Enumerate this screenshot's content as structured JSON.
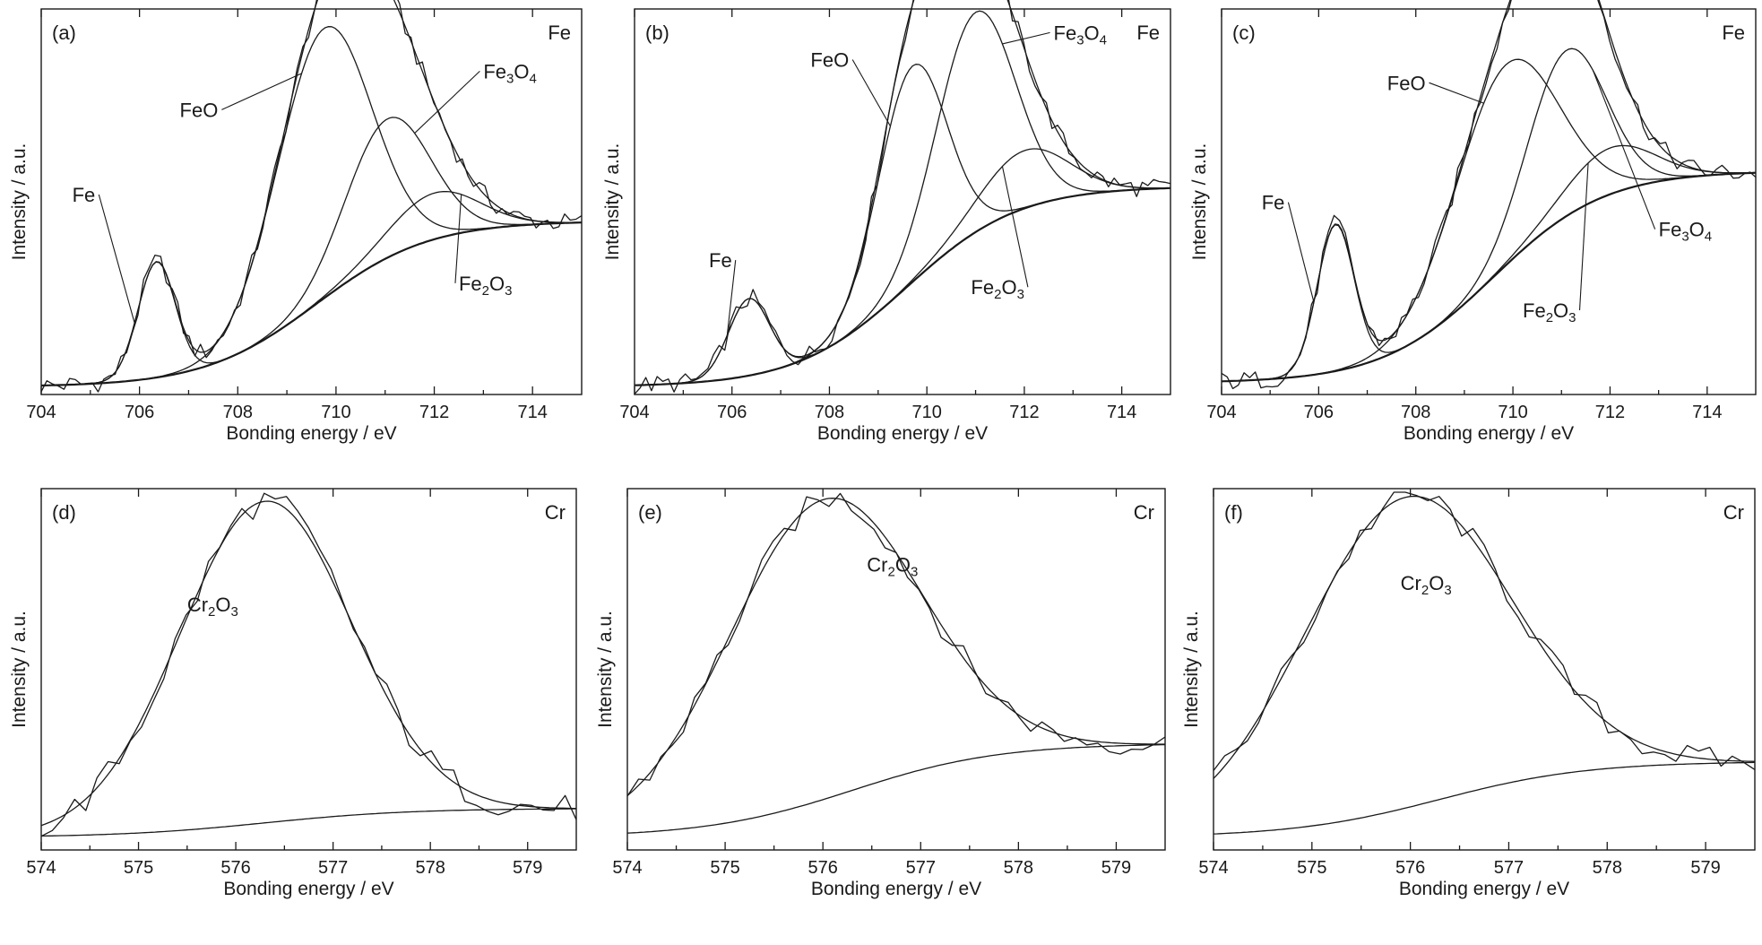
{
  "chart_data": [
    {
      "type": "line",
      "panel": "(a)",
      "element": "Fe",
      "xlabel": "Bonding energy / eV",
      "ylabel": "Intensity / a.u.",
      "xlim": [
        704,
        715
      ],
      "xticks": [
        "704",
        "706",
        "708",
        "710",
        "712",
        "714"
      ],
      "baseline": [
        0.02,
        0.45
      ],
      "peaks": [
        {
          "name": "Fe",
          "center": 706.35,
          "height": 0.3,
          "sigma": 0.38,
          "label_x": 705.1,
          "label_y": 0.5
        },
        {
          "name": "FeO",
          "center": 709.75,
          "height": 0.7,
          "sigma": 0.95,
          "label_x": 707.6,
          "label_y": 0.72
        },
        {
          "name": "Fe3O4",
          "center": 711.05,
          "height": 0.36,
          "sigma": 0.85,
          "label_x": 713.0,
          "label_y": 0.82
        },
        {
          "name": "Fe2O3",
          "center": 712.0,
          "height": 0.12,
          "sigma": 0.9,
          "label_x": 712.5,
          "label_y": 0.27
        }
      ],
      "noise": 0.025
    },
    {
      "type": "line",
      "panel": "(b)",
      "element": "Fe",
      "xlabel": "Bonding energy / eV",
      "ylabel": "Intensity / a.u.",
      "xlim": [
        704,
        715
      ],
      "xticks": [
        "704",
        "706",
        "708",
        "710",
        "712",
        "714"
      ],
      "baseline": [
        0.02,
        0.54
      ],
      "peaks": [
        {
          "name": "Fe",
          "center": 706.35,
          "height": 0.2,
          "sigma": 0.42,
          "label_x": 706.0,
          "label_y": 0.33
        },
        {
          "name": "FeO",
          "center": 709.7,
          "height": 0.56,
          "sigma": 0.7,
          "label_x": 708.4,
          "label_y": 0.85
        },
        {
          "name": "Fe3O4",
          "center": 711.0,
          "height": 0.57,
          "sigma": 0.8,
          "label_x": 712.6,
          "label_y": 0.92
        },
        {
          "name": "Fe2O3",
          "center": 712.0,
          "height": 0.15,
          "sigma": 0.9,
          "label_x": 712.0,
          "label_y": 0.26
        }
      ],
      "noise": 0.025
    },
    {
      "type": "line",
      "panel": "(c)",
      "element": "Fe",
      "xlabel": "Bonding energy / eV",
      "ylabel": "Intensity / a.u.",
      "xlim": [
        704,
        715
      ],
      "xticks": [
        "704",
        "706",
        "708",
        "710",
        "712",
        "714"
      ],
      "baseline": [
        0.03,
        0.58
      ],
      "peaks": [
        {
          "name": "Fe",
          "center": 706.35,
          "height": 0.38,
          "sigma": 0.38,
          "label_x": 705.3,
          "label_y": 0.48
        },
        {
          "name": "FeO",
          "center": 709.85,
          "height": 0.52,
          "sigma": 1.05,
          "label_x": 708.2,
          "label_y": 0.79
        },
        {
          "name": "Fe3O4",
          "center": 711.1,
          "height": 0.43,
          "sigma": 0.8,
          "label_x": 713.0,
          "label_y": 0.41
        },
        {
          "name": "Fe2O3",
          "center": 712.0,
          "height": 0.12,
          "sigma": 0.9,
          "label_x": 711.3,
          "label_y": 0.2
        }
      ],
      "noise": 0.025
    },
    {
      "type": "line",
      "panel": "(d)",
      "element": "Cr",
      "xlabel": "Bonding energy / eV",
      "ylabel": "Intensity / a.u.",
      "xlim": [
        574,
        579.5
      ],
      "xticks": [
        "574",
        "575",
        "576",
        "577",
        "578",
        "579"
      ],
      "baseline": [
        0.0,
        0.08
      ],
      "peak": {
        "name": "Cr2O3",
        "center": 576.3,
        "height": 0.89,
        "sigma": 0.88,
        "label_x": 575.5,
        "label_y": 0.66
      },
      "noise": 0.04
    },
    {
      "type": "line",
      "panel": "(e)",
      "element": "Cr",
      "xlabel": "Bonding energy / eV",
      "ylabel": "Intensity / a.u.",
      "xlim": [
        574,
        579.5
      ],
      "xticks": [
        "574",
        "575",
        "576",
        "577",
        "578",
        "579"
      ],
      "baseline": [
        0.0,
        0.26
      ],
      "peak": {
        "name": "Cr2O3",
        "center": 576.0,
        "height": 0.83,
        "sigma": 0.98,
        "label_x": 576.45,
        "label_y": 0.77
      },
      "noise": 0.035
    },
    {
      "type": "line",
      "panel": "(f)",
      "element": "Cr",
      "xlabel": "Bonding energy / eV",
      "ylabel": "Intensity / a.u.",
      "xlim": [
        574,
        579.5
      ],
      "xticks": [
        "574",
        "575",
        "576",
        "577",
        "578",
        "579"
      ],
      "baseline": [
        0.0,
        0.21
      ],
      "peak": {
        "name": "Cr2O3",
        "center": 575.95,
        "height": 0.86,
        "sigma": 1.05,
        "label_x": 575.9,
        "label_y": 0.72
      },
      "noise": 0.035
    }
  ]
}
